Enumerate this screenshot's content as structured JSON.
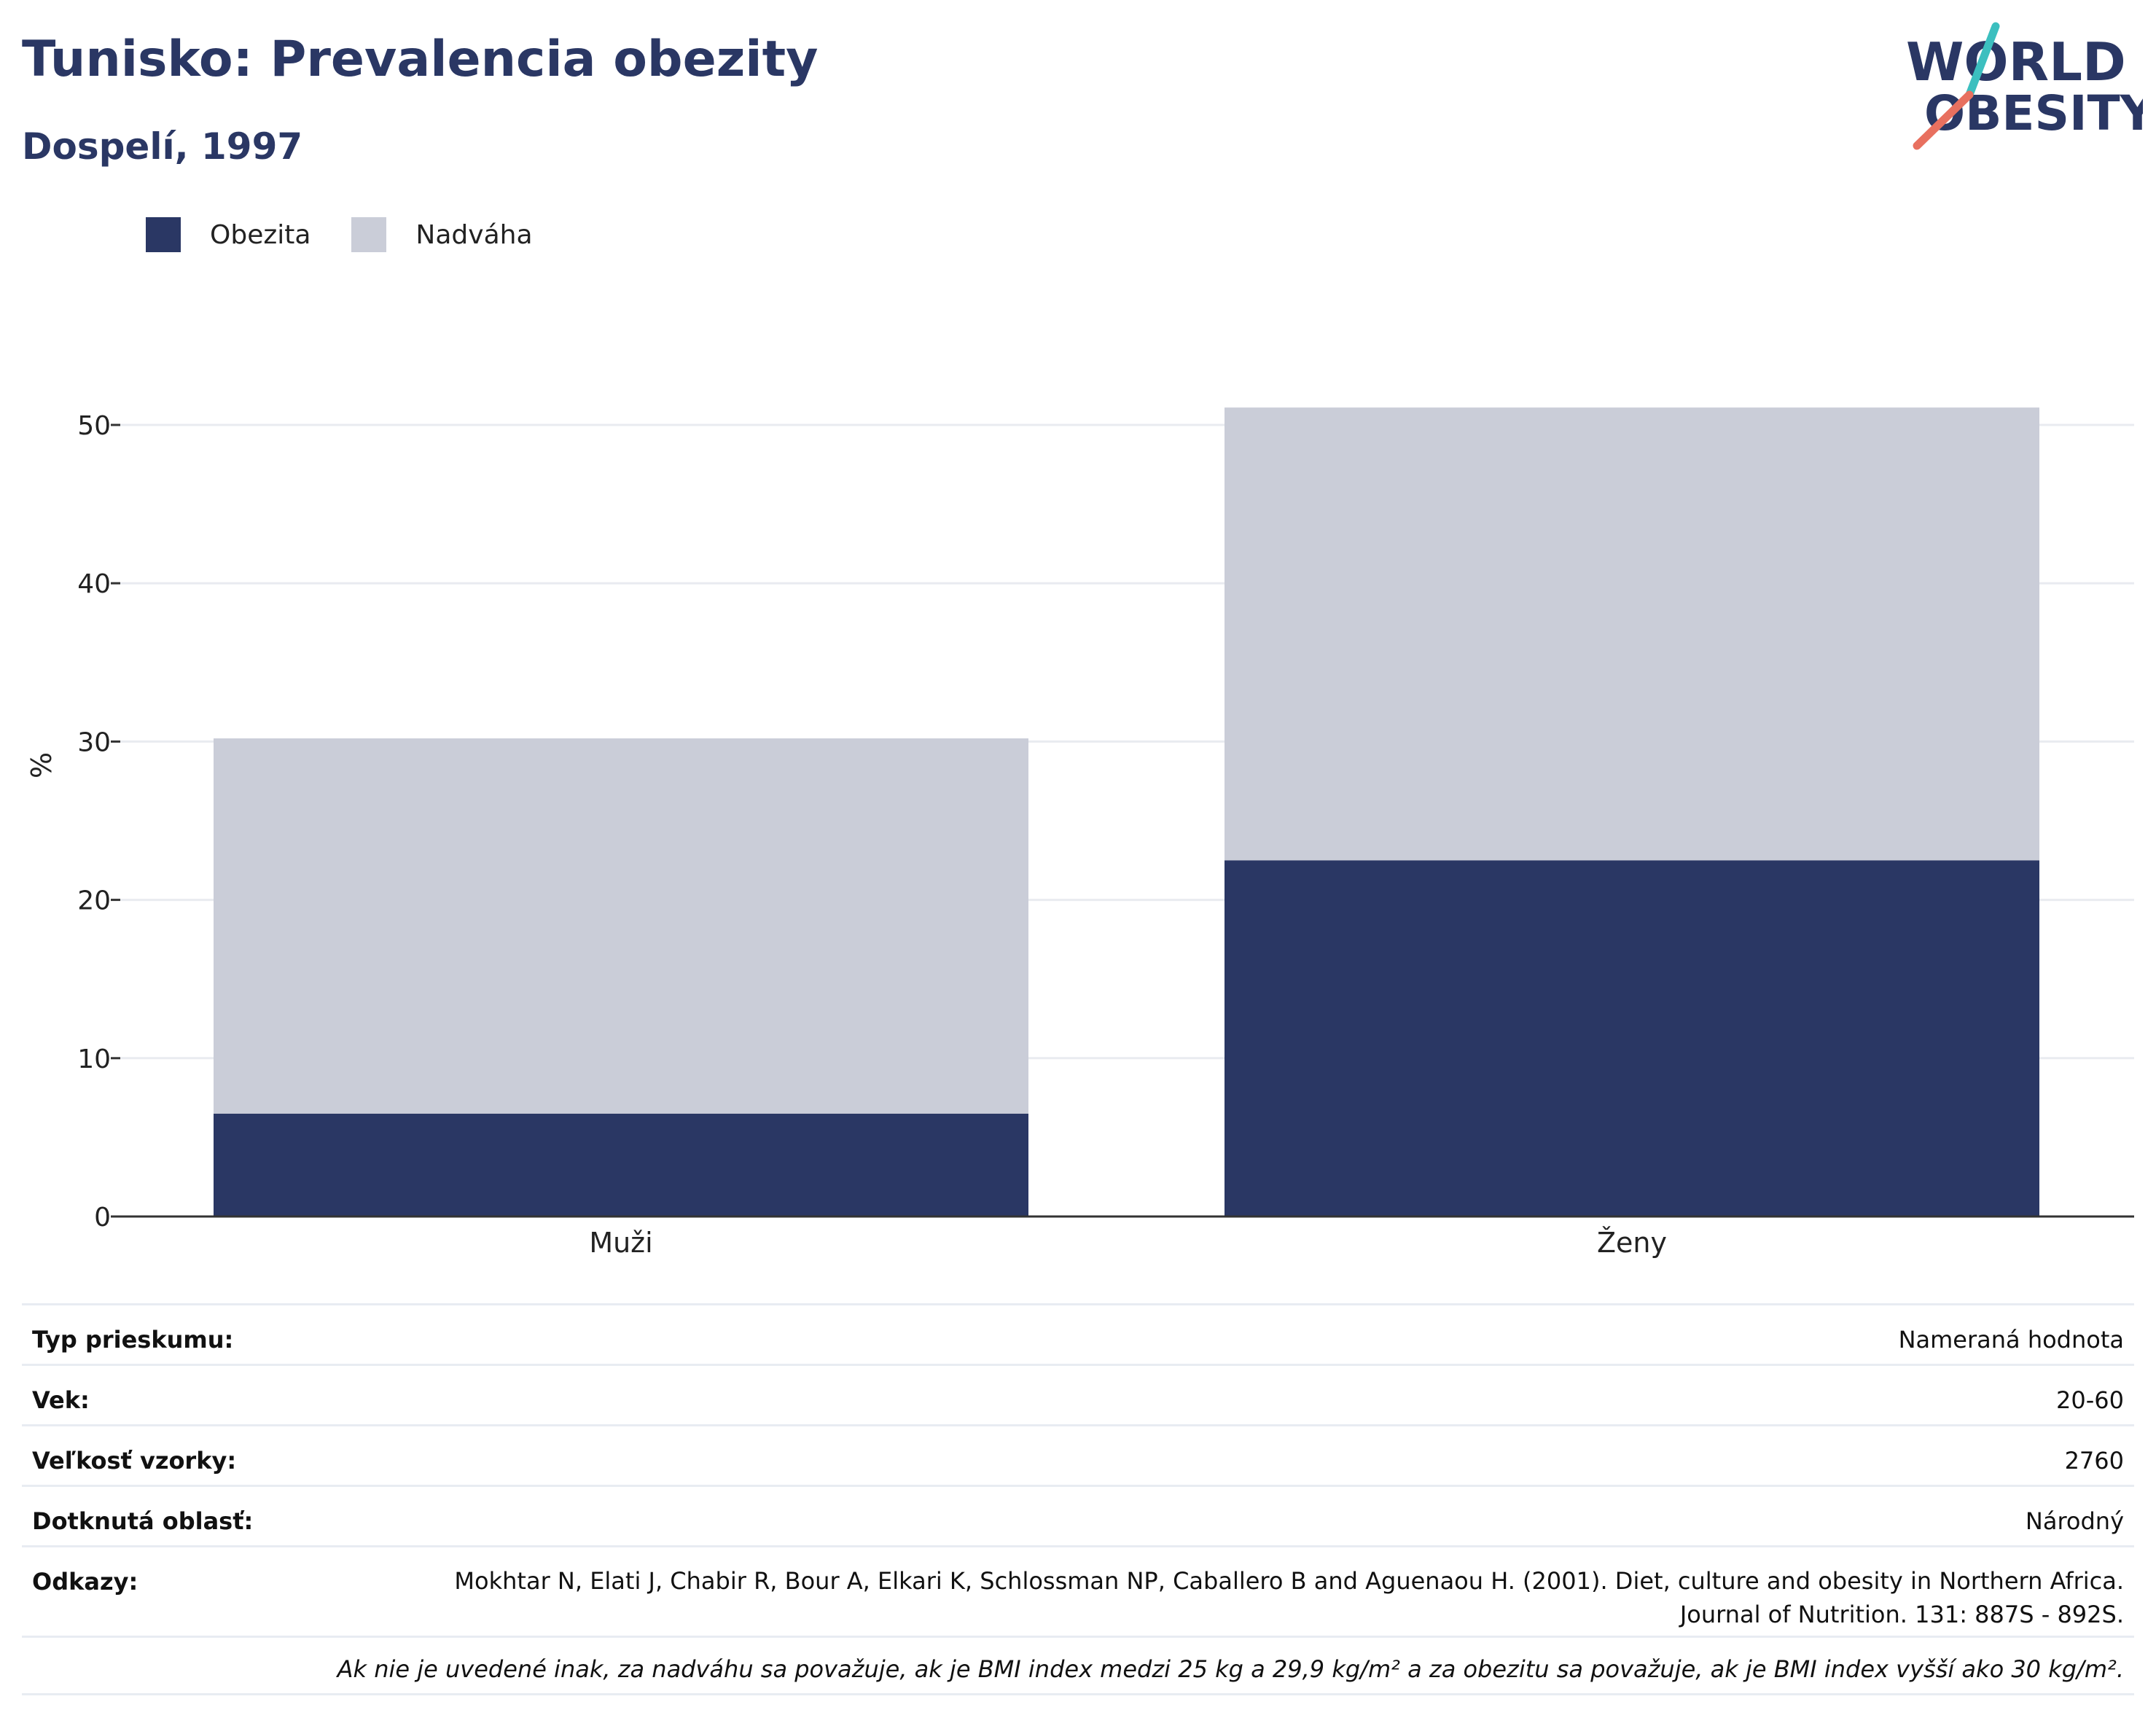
{
  "header": {
    "title": "Tunisko: Prevalencia obezity",
    "subtitle": "Dospelí, 1997"
  },
  "logo": {
    "line1": "WORLD",
    "line2": "OBESITY",
    "colors": {
      "text": "#2a3764",
      "slash_top": "#3cbfbf",
      "slash_bottom": "#e8705f"
    }
  },
  "chart_data": {
    "type": "bar",
    "stacked": true,
    "title": "Tunisko: Prevalencia obezity",
    "subtitle": "Dospelí, 1997",
    "categories": [
      "Muži",
      "Ženy"
    ],
    "series": [
      {
        "name": "Obezita",
        "values": [
          6.5,
          22.5
        ],
        "color": "#2a3764"
      },
      {
        "name": "Nadváha",
        "values": [
          23.7,
          28.6
        ],
        "color": "#cacdd8"
      }
    ],
    "xlabel": "",
    "ylabel": "%",
    "ylim": [
      0,
      55
    ],
    "yticks": [
      0,
      10,
      20,
      30,
      40,
      50
    ],
    "grid": true,
    "legend_position": "top-left"
  },
  "meta": {
    "rows": [
      {
        "key": "Typ prieskumu:",
        "value": "Nameraná hodnota"
      },
      {
        "key": "Vek:",
        "value": "20-60"
      },
      {
        "key": "Veľkosť vzorky:",
        "value": "2760"
      },
      {
        "key": "Dotknutá oblasť:",
        "value": "Národný"
      }
    ],
    "reference": {
      "key": "Odkazy:",
      "value": "Mokhtar N, Elati J, Chabir R, Bour A, Elkari K, Schlossman NP, Caballero B and Aguenaou H. (2001). Diet, culture and obesity in Northern Africa. Journal of Nutrition. 131: 887S - 892S."
    },
    "note": "Ak nie je uvedené inak, za nadváhu sa považuje, ak je BMI index medzi 25 kg a 29,9 kg/m² a za obezitu sa považuje, ak je BMI index vyšší ako 30 kg/m²."
  }
}
